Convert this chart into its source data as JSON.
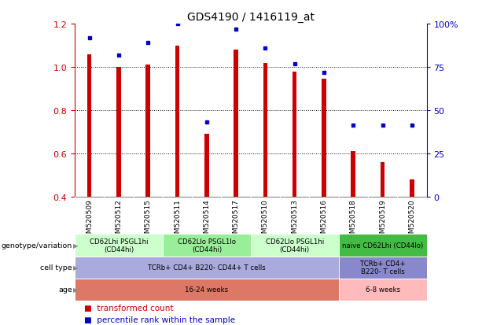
{
  "title": "GDS4190 / 1416119_at",
  "samples": [
    "GSM520509",
    "GSM520512",
    "GSM520515",
    "GSM520511",
    "GSM520514",
    "GSM520517",
    "GSM520510",
    "GSM520513",
    "GSM520516",
    "GSM520518",
    "GSM520519",
    "GSM520520"
  ],
  "transformed_count": [
    1.06,
    1.0,
    1.01,
    1.1,
    0.69,
    1.08,
    1.02,
    0.98,
    0.945,
    0.61,
    0.56,
    0.48
  ],
  "percentile_rank": [
    0.92,
    0.82,
    0.89,
    1.0,
    0.43,
    0.97,
    0.86,
    0.77,
    0.72,
    0.415,
    0.415,
    0.415
  ],
  "y_min": 0.4,
  "y_max": 1.2,
  "bar_color": "#cc0000",
  "dot_color": "#0000cc",
  "background_color": "#ffffff",
  "genotype_groups": [
    {
      "label": "CD62Lhi PSGL1hi\n(CD44hi)",
      "start": 0,
      "end": 3,
      "color": "#ccffcc"
    },
    {
      "label": "CD62Llo PSGL1lo\n(CD44hi)",
      "start": 3,
      "end": 6,
      "color": "#99ee99"
    },
    {
      "label": "CD62Llo PSGL1hi\n(CD44hi)",
      "start": 6,
      "end": 9,
      "color": "#ccffcc"
    },
    {
      "label": "naive CD62Lhi (CD44lo)",
      "start": 9,
      "end": 12,
      "color": "#44bb44"
    }
  ],
  "cell_type_groups": [
    {
      "label": "TCRb+ CD4+ B220- CD44+ T cells",
      "start": 0,
      "end": 9,
      "color": "#aaaadd"
    },
    {
      "label": "TCRb+ CD4+\nB220- T cells",
      "start": 9,
      "end": 12,
      "color": "#8888cc"
    }
  ],
  "age_groups": [
    {
      "label": "16-24 weeks",
      "start": 0,
      "end": 9,
      "color": "#dd7766"
    },
    {
      "label": "6-8 weeks",
      "start": 9,
      "end": 12,
      "color": "#ffbbbb"
    }
  ],
  "row_labels": [
    "genotype/variation",
    "cell type",
    "age"
  ],
  "legend_bar_label": "transformed count",
  "legend_dot_label": "percentile rank within the sample",
  "right_axis_ticks": [
    0,
    25,
    50,
    75,
    100
  ],
  "right_axis_labels": [
    "0",
    "25",
    "50",
    "75",
    "100%"
  ],
  "right_axis_color": "#0000cc",
  "xtick_bg_color": "#cccccc",
  "left_spine_color": "#cc0000"
}
